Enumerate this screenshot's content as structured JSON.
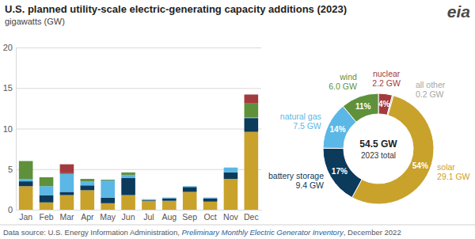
{
  "chart_data": [
    {
      "type": "bar",
      "title": "U.S. planned utility-scale electric-generating capacity additions (2023)",
      "subtitle": "gigawatts (GW)",
      "logo": "eia",
      "source": [
        "Data source: U.S. Energy Information Administration, ",
        "Preliminary Monthly Electric Generator Inventory",
        ", December 2022"
      ],
      "categories": [
        "Jan",
        "Feb",
        "Mar",
        "Apr",
        "May",
        "Jun",
        "Jul",
        "Aug",
        "Sep",
        "Oct",
        "Nov",
        "Dec"
      ],
      "series": [
        {
          "color": "#c9a22c",
          "values": [
            2.9,
            0.9,
            1.8,
            2.4,
            0.8,
            1.8,
            1.1,
            1.1,
            2.2,
            1.0,
            3.8,
            9.6
          ]
        },
        {
          "color": "#0b3a5b",
          "values": [
            0.6,
            0.9,
            0.4,
            0.6,
            0.7,
            2.1,
            0.1,
            0.3,
            0.6,
            0.4,
            0.8,
            1.7
          ]
        },
        {
          "color": "#5bb7e6",
          "values": [
            0.3,
            1.1,
            2.2,
            0.5,
            2.1,
            0.4,
            0.1,
            0.1,
            0.1,
            0.1,
            0.6,
            0.1
          ]
        },
        {
          "color": "#5f913b",
          "values": [
            2.2,
            1.1,
            0.1,
            0.3,
            0.1,
            0.3,
            0,
            0,
            0,
            0,
            0,
            1.7
          ]
        },
        {
          "color": "#a33b3e",
          "values": [
            0,
            0,
            1.1,
            0,
            0,
            0,
            0,
            0,
            0,
            0,
            0,
            1.1
          ]
        }
      ],
      "ylim": [
        0,
        20
      ],
      "yticks": [
        0,
        5,
        10,
        15,
        20
      ],
      "grid": true,
      "stacked": true
    },
    {
      "type": "pie",
      "categories": [
        "nuclear",
        "all other",
        "solar",
        "battery storage",
        "natural gas",
        "wind"
      ],
      "values": [
        2.2,
        0.2,
        29.1,
        9.4,
        7.5,
        6.0
      ],
      "value_labels": [
        "2.2 GW",
        "0.2 GW",
        "29.1 GW",
        "9.4 GW",
        "7.5 GW",
        "6.0 GW"
      ],
      "percents": [
        4,
        null,
        54,
        17,
        14,
        11
      ],
      "percent_labels": [
        "4%",
        null,
        "54%",
        "17%",
        "14%",
        "11%"
      ],
      "colors": [
        "#a33b3e",
        "#a6a6a6",
        "#c9a22c",
        "#0b3a5b",
        "#5bb7e6",
        "#5f913b"
      ],
      "total": 54.5,
      "total_label": "54.5 GW",
      "center_label": "2023 total",
      "data_labels": true
    }
  ]
}
